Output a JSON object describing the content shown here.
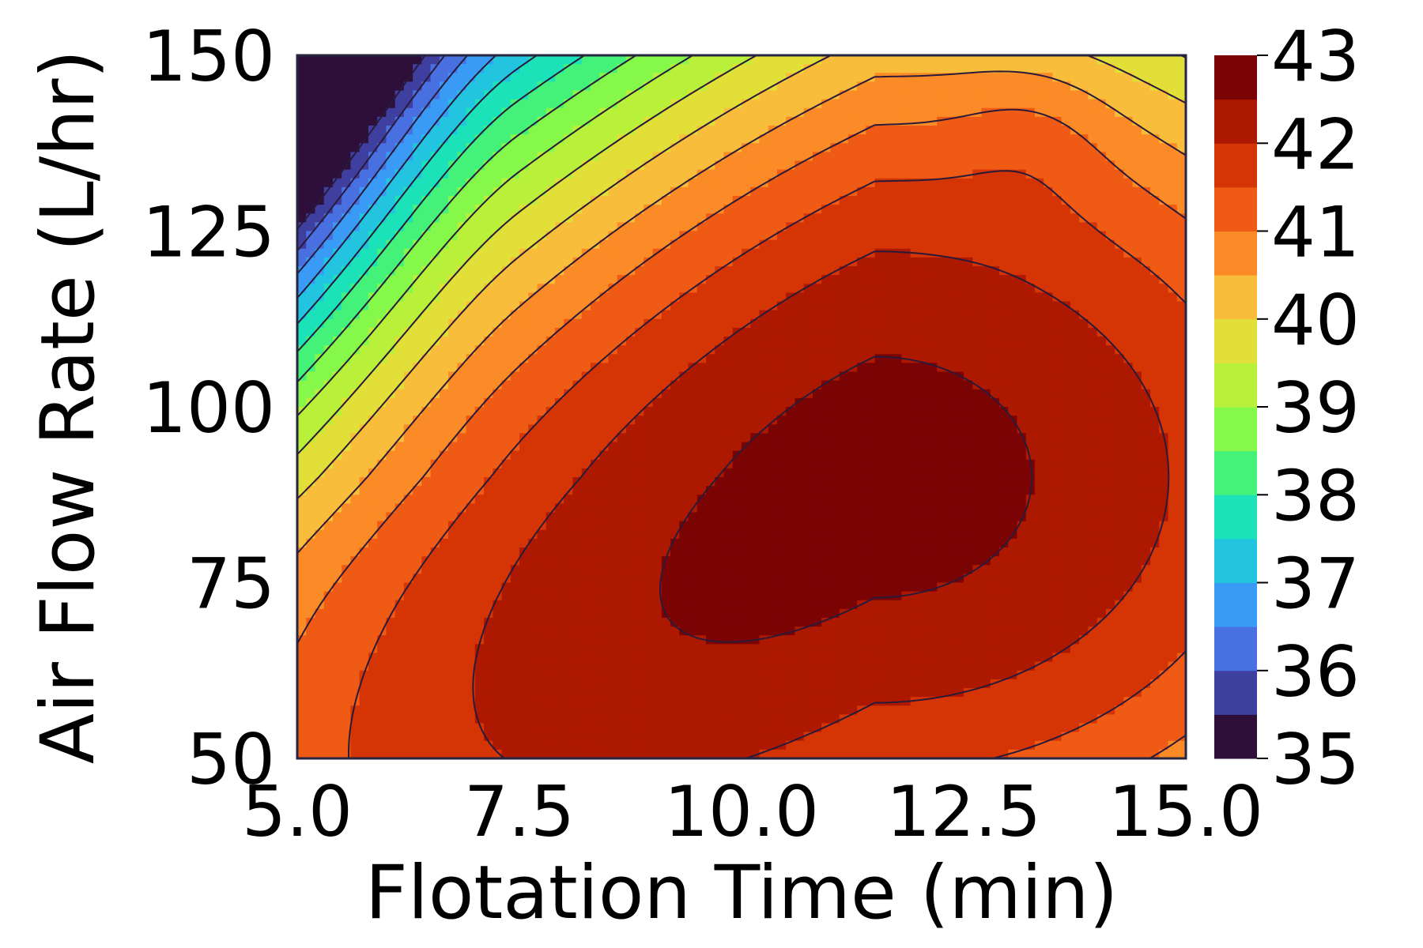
{
  "chart_data": {
    "type": "contour",
    "title": "",
    "xlabel": "Flotation Time (min)",
    "ylabel": "Air Flow Rate (L/hr)",
    "xlim": [
      5.0,
      15.0
    ],
    "ylim": [
      50,
      150
    ],
    "x_ticks": [
      "5.0",
      "7.5",
      "10.0",
      "12.5",
      "15.0"
    ],
    "y_ticks": [
      "50",
      "75",
      "100",
      "125",
      "150"
    ],
    "colorbar": {
      "range": [
        35,
        43
      ],
      "ticks": [
        "35",
        "36",
        "37",
        "38",
        "39",
        "40",
        "41",
        "42",
        "43"
      ],
      "levels": [
        35,
        35.5,
        36,
        36.5,
        37,
        37.5,
        38,
        38.5,
        39,
        39.5,
        40,
        40.5,
        41,
        41.5,
        42,
        42.5,
        43
      ],
      "colors": [
        "#2d0f3a",
        "#3f3f9f",
        "#4870e0",
        "#3a9bf6",
        "#22c4e0",
        "#1be2b8",
        "#44f27a",
        "#86f84a",
        "#b9f03a",
        "#e2df38",
        "#f8bd3a",
        "#fb8b26",
        "#ef5a14",
        "#d53405",
        "#ad1801",
        "#7a0403"
      ]
    },
    "model": {
      "description_free_parameters_only": true,
      "peak_x": 11.5,
      "peak_y": 90,
      "peak_value": 42.7
    },
    "grid": false,
    "legend": "colorbar-right"
  }
}
